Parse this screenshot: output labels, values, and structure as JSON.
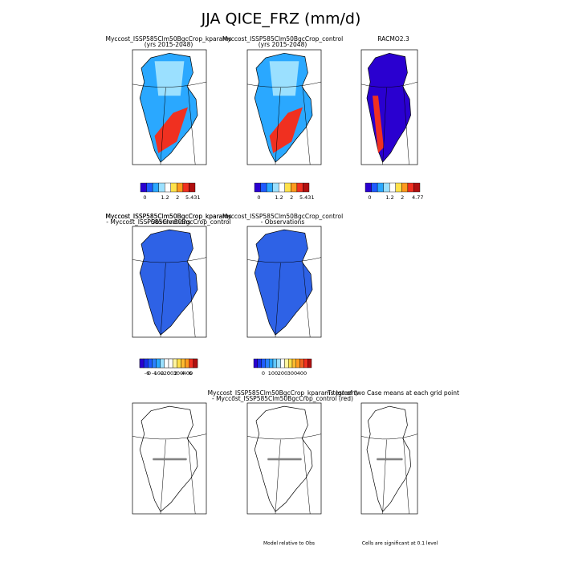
{
  "title": "JJA QICE_FRZ (mm/d)",
  "panels": [
    {
      "title": [
        "Myccost_ISSP585Clm50BgcCrop_kparams",
        "(yrs 2015-2048)"
      ],
      "colorbar": {
        "colors": [
          "#2a00d0",
          "#1f5aff",
          "#2aa8ff",
          "#9be0ff",
          "#ffffff",
          "#ffe14a",
          "#ff9a1e",
          "#f03020",
          "#b01010"
        ],
        "labels": [
          "0",
          "1.2",
          "2",
          "5.431"
        ]
      }
    },
    {
      "title": [
        "Myccost_ISSP585Clm50BgcCrop_control",
        "(yrs 2015-2048)"
      ],
      "colorbar": {
        "colors": [
          "#2a00d0",
          "#1f5aff",
          "#2aa8ff",
          "#9be0ff",
          "#ffffff",
          "#ffe14a",
          "#ff9a1e",
          "#f03020",
          "#b01010"
        ],
        "labels": [
          "0",
          "1.2",
          "2",
          "5.431"
        ]
      }
    },
    {
      "title": [
        "RACMO2.3"
      ],
      "colorbar": {
        "colors": [
          "#2a00d0",
          "#1f5aff",
          "#2aa8ff",
          "#9be0ff",
          "#ffffff",
          "#ffe14a",
          "#ff9a1e",
          "#f03020",
          "#b01010"
        ],
        "labels": [
          "0",
          "1.2",
          "2",
          "4.77"
        ]
      }
    },
    {
      "title": [
        "Myccost_ISSP585Clm50BgcCrop_kparams",
        "- Observations"
      ],
      "colorbar": {
        "colors": [
          "#2a00d0",
          "#1830e8",
          "#1f5aff",
          "#2a80ff",
          "#2aa8ff",
          "#60c8ff",
          "#9be0ff",
          "#ffffff",
          "#fff5a0",
          "#ffe14a",
          "#ffbb30",
          "#ff9a1e",
          "#f06020",
          "#f03020",
          "#b01010"
        ],
        "labels": [
          "0",
          "100",
          "200",
          "300",
          "400"
        ]
      }
    },
    {
      "title": [
        "Myccost_ISSP585Clm50BgcCrop_control",
        "- Observations"
      ],
      "colorbar": {
        "colors": [
          "#2a00d0",
          "#1830e8",
          "#1f5aff",
          "#2a80ff",
          "#2aa8ff",
          "#60c8ff",
          "#9be0ff",
          "#ffffff",
          "#fff5a0",
          "#ffe14a",
          "#ffbb30",
          "#ff9a1e",
          "#f06020",
          "#f03020",
          "#b01010"
        ],
        "labels": [
          "0",
          "100",
          "200",
          "300",
          "400"
        ]
      }
    },
    {
      "title": [
        "Myccost_ISSP585Clm50BgcCrop_kparams",
        "- Myccost_ISSP585Clm50BgcCrop_control"
      ],
      "colorbar": {
        "colors": [
          "#2a00d0",
          "#1830e8",
          "#1f5aff",
          "#2a80ff",
          "#2aa8ff",
          "#9be0ff",
          "#ffffff",
          "#ffffff",
          "#fff5a0",
          "#ffe14a",
          "#ffbb30",
          "#ff9a1e",
          "#f03020",
          "#b01010"
        ],
        "labels": [
          "-6",
          "-4",
          "-2",
          "0",
          "2",
          "4",
          "6"
        ]
      }
    },
    {
      "title": [
        "Myccost_ISSP585Clm50BgcCrop_kparams (green)",
        "- Myccost_ISSP585Clm50BgcCrop_control (red)"
      ],
      "footer": "Model relative to Obs"
    },
    {
      "title": [
        "T-test of two Case means at each grid point"
      ],
      "footer": "Cells are significant at 0.1 level"
    }
  ]
}
